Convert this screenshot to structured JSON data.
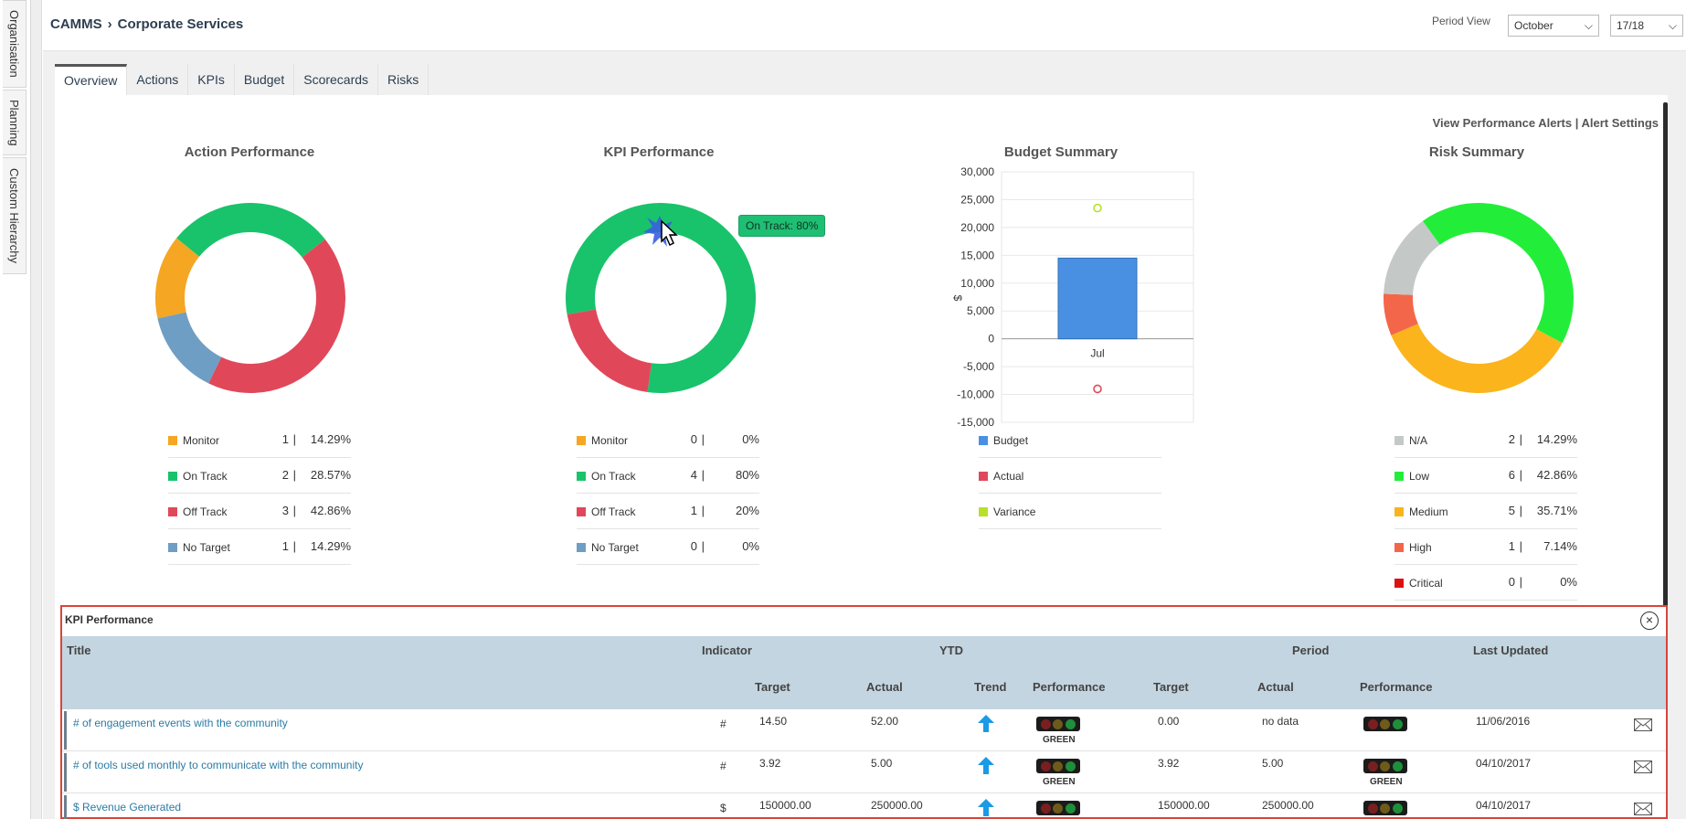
{
  "side_nav": {
    "items": [
      {
        "label": "Organisation"
      },
      {
        "label": "Planning"
      },
      {
        "label": "Custom Hierarchy"
      }
    ]
  },
  "header": {
    "app": "CAMMS",
    "section": "Corporate Services",
    "period_label": "Period View",
    "month": "October",
    "year": "17/18"
  },
  "tabs": [
    "Overview",
    "Actions",
    "KPIs",
    "Budget",
    "Scorecards",
    "Risks"
  ],
  "alerts": {
    "view": "View Performance Alerts",
    "separator": "|",
    "settings": "Alert Settings"
  },
  "action_performance": {
    "title": "Action Performance",
    "items": [
      {
        "label": "Monitor",
        "count": "1",
        "pct": "14.29%",
        "color": "#f5a623"
      },
      {
        "label": "On Track",
        "count": "2",
        "pct": "28.57%",
        "color": "#19c36b"
      },
      {
        "label": "Off Track",
        "count": "3",
        "pct": "42.86%",
        "color": "#e0485a"
      },
      {
        "label": "No Target",
        "count": "1",
        "pct": "14.29%",
        "color": "#6f9ec4"
      }
    ]
  },
  "kpi_performance": {
    "title": "KPI Performance",
    "tooltip": "On Track: 80%",
    "items": [
      {
        "label": "Monitor",
        "count": "0",
        "pct": "0%",
        "color": "#f5a623"
      },
      {
        "label": "On Track",
        "count": "4",
        "pct": "80%",
        "color": "#19c36b"
      },
      {
        "label": "Off Track",
        "count": "1",
        "pct": "20%",
        "color": "#e0485a"
      },
      {
        "label": "No Target",
        "count": "0",
        "pct": "0%",
        "color": "#6f9ec4"
      }
    ]
  },
  "budget_summary": {
    "title": "Budget Summary",
    "items": [
      {
        "label": "Budget",
        "color": "#4a90e2"
      },
      {
        "label": "Actual",
        "color": "#e0485a"
      },
      {
        "label": "Variance",
        "color": "#b8e02a"
      }
    ]
  },
  "risk_summary": {
    "title": "Risk Summary",
    "items": [
      {
        "label": "N/A",
        "count": "2",
        "pct": "14.29%",
        "color": "#c4c9c7"
      },
      {
        "label": "Low",
        "count": "6",
        "pct": "42.86%",
        "color": "#22ee3a"
      },
      {
        "label": "Medium",
        "count": "5",
        "pct": "35.71%",
        "color": "#fbb41c"
      },
      {
        "label": "High",
        "count": "1",
        "pct": "7.14%",
        "color": "#f4664a"
      },
      {
        "label": "Critical",
        "count": "0",
        "pct": "0%",
        "color": "#dd1111"
      }
    ]
  },
  "chart_data": [
    {
      "type": "pie",
      "title": "Action Performance",
      "categories": [
        "Monitor",
        "On Track",
        "Off Track",
        "No Target"
      ],
      "values": [
        1,
        2,
        3,
        1
      ]
    },
    {
      "type": "pie",
      "title": "KPI Performance",
      "categories": [
        "Monitor",
        "On Track",
        "Off Track",
        "No Target"
      ],
      "values": [
        0,
        4,
        1,
        0
      ]
    },
    {
      "type": "bar",
      "title": "Budget Summary",
      "categories": [
        "Jul"
      ],
      "ylabel": "$",
      "ylim": [
        -15000,
        30000
      ],
      "yticks": [
        "30,000",
        "25,000",
        "20,000",
        "15,000",
        "10,000",
        "5,000",
        "0",
        "-5,000",
        "-10,000",
        "-15,000"
      ],
      "series": [
        {
          "name": "Budget",
          "values": [
            14500
          ]
        },
        {
          "name": "Actual",
          "values": [
            -9000
          ]
        },
        {
          "name": "Variance",
          "values": [
            23500
          ]
        }
      ]
    },
    {
      "type": "pie",
      "title": "Risk Summary",
      "categories": [
        "N/A",
        "Low",
        "Medium",
        "High",
        "Critical"
      ],
      "values": [
        2,
        6,
        5,
        1,
        0
      ]
    }
  ],
  "kpi_table": {
    "title": "KPI Performance",
    "headers": {
      "title": "Title",
      "indicator": "Indicator",
      "ytd": "YTD",
      "period": "Period",
      "last_updated": "Last Updated",
      "target": "Target",
      "actual": "Actual",
      "trend": "Trend",
      "performance": "Performance"
    },
    "rows": [
      {
        "title": "# of engagement events with the community",
        "indicator": "#",
        "ytd_target": "14.50",
        "ytd_actual": "52.00",
        "ytd_perf": "GREEN",
        "p_target": "0.00",
        "p_actual": "no data",
        "p_perf": "",
        "updated": "11/06/2016"
      },
      {
        "title": "# of tools used monthly to communicate with the community",
        "indicator": "#",
        "ytd_target": "3.92",
        "ytd_actual": "5.00",
        "ytd_perf": "GREEN",
        "p_target": "3.92",
        "p_actual": "5.00",
        "p_perf": "GREEN",
        "updated": "04/10/2017"
      },
      {
        "title": "$ Revenue Generated",
        "indicator": "$",
        "ytd_target": "150000.00",
        "ytd_actual": "250000.00",
        "ytd_perf": "",
        "p_target": "150000.00",
        "p_actual": "250000.00",
        "p_perf": "",
        "updated": "04/10/2017"
      }
    ]
  }
}
